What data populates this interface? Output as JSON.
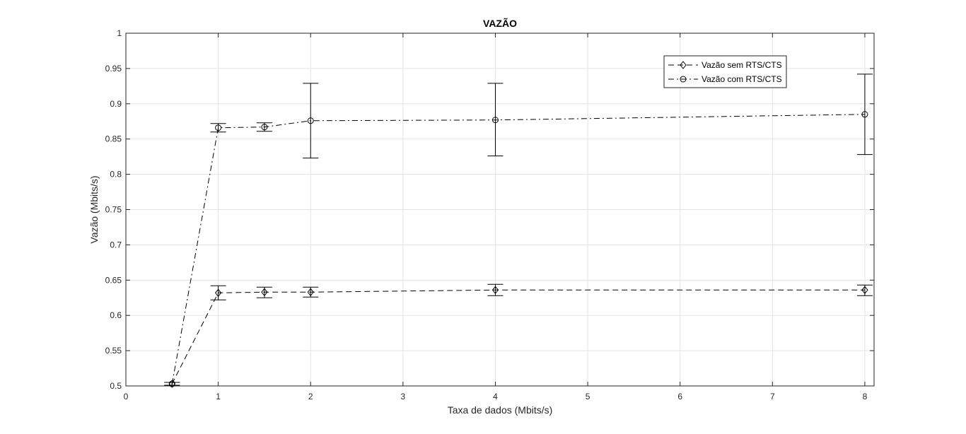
{
  "chart_data": {
    "type": "line",
    "title": "VAZÃO",
    "xlabel": "Taxa de dados (Mbits/s)",
    "ylabel": "Vazão (Mbits/s)",
    "xlim": [
      0,
      8.1
    ],
    "ylim": [
      0.5,
      1
    ],
    "x_ticks": [
      0,
      1,
      2,
      3,
      4,
      5,
      6,
      7,
      8
    ],
    "y_ticks": [
      0.5,
      0.55,
      0.6,
      0.65,
      0.7,
      0.75,
      0.8,
      0.85,
      0.9,
      0.95,
      1
    ],
    "x_tick_labels": [
      "0",
      "1",
      "2",
      "3",
      "4",
      "5",
      "6",
      "7",
      "8"
    ],
    "y_tick_labels": [
      "0.5",
      "0.55",
      "0.6",
      "0.65",
      "0.7",
      "0.75",
      "0.8",
      "0.85",
      "0.9",
      "0.95",
      "1"
    ],
    "grid": true,
    "legend_position": "top-right",
    "series": [
      {
        "name": "Vazão sem RTS/CTS",
        "marker": "diamond",
        "line_style": "dashed",
        "color": "#000000",
        "x": [
          0.5,
          1,
          1.5,
          2,
          4,
          8
        ],
        "y": [
          0.503,
          0.632,
          0.633,
          0.633,
          0.636,
          0.636
        ],
        "err_low": [
          0.501,
          0.622,
          0.625,
          0.626,
          0.628,
          0.628
        ],
        "err_high": [
          0.505,
          0.642,
          0.64,
          0.64,
          0.644,
          0.643
        ]
      },
      {
        "name": "Vazão com RTS/CTS",
        "marker": "circle",
        "line_style": "dash-dot",
        "color": "#000000",
        "x": [
          0.5,
          1,
          1.5,
          2,
          4,
          8
        ],
        "y": [
          0.503,
          0.866,
          0.867,
          0.876,
          0.877,
          0.885
        ],
        "err_low": [
          0.501,
          0.86,
          0.861,
          0.823,
          0.826,
          0.828
        ],
        "err_high": [
          0.505,
          0.872,
          0.873,
          0.929,
          0.929,
          0.942
        ]
      }
    ]
  }
}
